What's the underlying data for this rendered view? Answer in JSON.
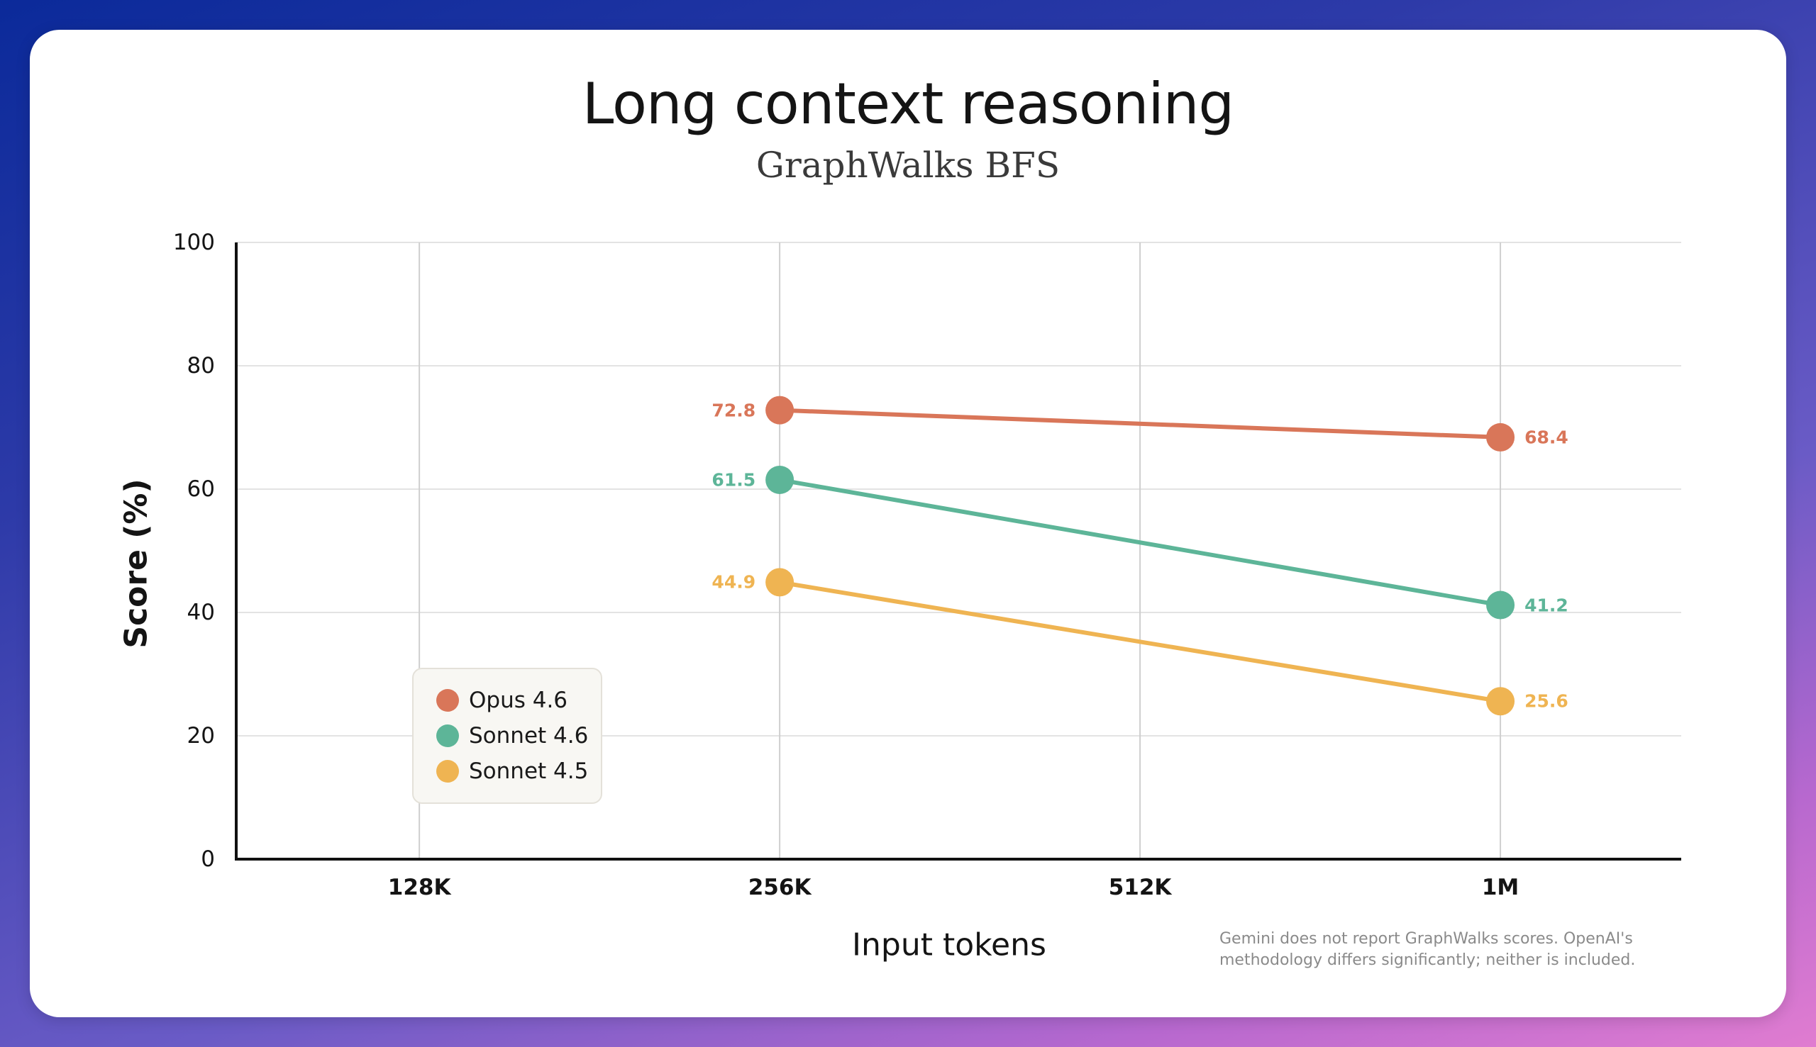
{
  "chart_data": {
    "type": "line",
    "title": "Long context reasoning",
    "subtitle": "GraphWalks BFS",
    "xlabel": "Input tokens",
    "ylabel": "Score (%)",
    "ylim": [
      0,
      100
    ],
    "yticks": [
      "0",
      "20",
      "40",
      "60",
      "80",
      "100"
    ],
    "categories": [
      "128K",
      "256K",
      "512K",
      "1M"
    ],
    "x": [
      128,
      256,
      512,
      1024
    ],
    "grid": true,
    "legend_position": "lower-left",
    "series": [
      {
        "name": "Opus 4.6",
        "color": "#d97659",
        "x": [
          256,
          1024
        ],
        "values": [
          72.8,
          68.4
        ],
        "labels": [
          "72.8",
          "68.4"
        ]
      },
      {
        "name": "Sonnet 4.6",
        "color": "#5db598",
        "x": [
          256,
          1024
        ],
        "values": [
          61.5,
          41.2
        ],
        "labels": [
          "61.5",
          "41.2"
        ]
      },
      {
        "name": "Sonnet 4.5",
        "color": "#efb452",
        "x": [
          256,
          1024
        ],
        "values": [
          44.9,
          25.6
        ],
        "labels": [
          "44.9",
          "25.6"
        ]
      }
    ],
    "footnote": "Gemini does not report GraphWalks scores. OpenAI's methodology differs significantly; neither is included."
  }
}
